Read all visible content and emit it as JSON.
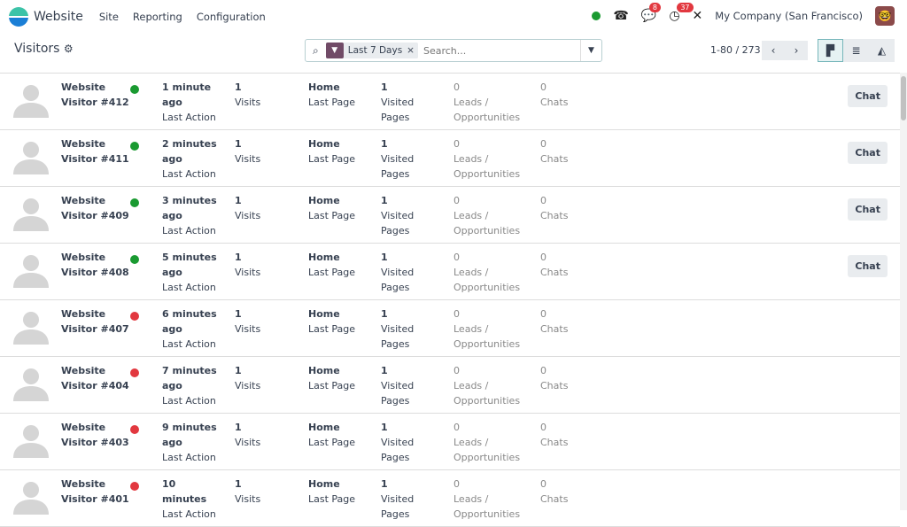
{
  "nav": {
    "app": "Website",
    "menus": [
      "Site",
      "Reporting",
      "Configuration"
    ],
    "messages_badge": "8",
    "activities_badge": "37",
    "company": "My Company (San Francisco)",
    "status_color": "#1a9a31"
  },
  "control": {
    "title": "Visitors",
    "facet": "Last 7 Days",
    "search_placeholder": "Search...",
    "pager": "1-80 / 273"
  },
  "labels": {
    "last_action": "Last Action",
    "visits": "Visits",
    "last_page": "Last Page",
    "visited": "Visited",
    "pages": "Pages",
    "leads": "Leads /",
    "opps": "Opportunities",
    "chats": "Chats",
    "chat_button": "Chat"
  },
  "colors": {
    "online": "#1a9a31",
    "offline": "#e2383f"
  },
  "visitors": [
    {
      "name1": "Website",
      "name2": "Visitor #412",
      "online": true,
      "t1": "1 minute",
      "t2": "ago",
      "visits": "1",
      "page": "Home",
      "pages": "1",
      "leads": "0",
      "chats": "0"
    },
    {
      "name1": "Website",
      "name2": "Visitor #411",
      "online": true,
      "t1": "2 minutes",
      "t2": "ago",
      "visits": "1",
      "page": "Home",
      "pages": "1",
      "leads": "0",
      "chats": "0"
    },
    {
      "name1": "Website",
      "name2": "Visitor #409",
      "online": true,
      "t1": "3 minutes",
      "t2": "ago",
      "visits": "1",
      "page": "Home",
      "pages": "1",
      "leads": "0",
      "chats": "0"
    },
    {
      "name1": "Website",
      "name2": "Visitor #408",
      "online": true,
      "t1": "5 minutes",
      "t2": "ago",
      "visits": "1",
      "page": "Home",
      "pages": "1",
      "leads": "0",
      "chats": "0"
    },
    {
      "name1": "Website",
      "name2": "Visitor #407",
      "online": false,
      "t1": "6 minutes",
      "t2": "ago",
      "visits": "1",
      "page": "Home",
      "pages": "1",
      "leads": "0",
      "chats": "0"
    },
    {
      "name1": "Website",
      "name2": "Visitor #404",
      "online": false,
      "t1": "7 minutes",
      "t2": "ago",
      "visits": "1",
      "page": "Home",
      "pages": "1",
      "leads": "0",
      "chats": "0"
    },
    {
      "name1": "Website",
      "name2": "Visitor #403",
      "online": false,
      "t1": "9 minutes",
      "t2": "ago",
      "visits": "1",
      "page": "Home",
      "pages": "1",
      "leads": "0",
      "chats": "0"
    },
    {
      "name1": "Website",
      "name2": "Visitor #401",
      "online": false,
      "t1": "10",
      "t2": "minutes",
      "visits": "1",
      "page": "Home",
      "pages": "1",
      "leads": "0",
      "chats": "0"
    }
  ]
}
